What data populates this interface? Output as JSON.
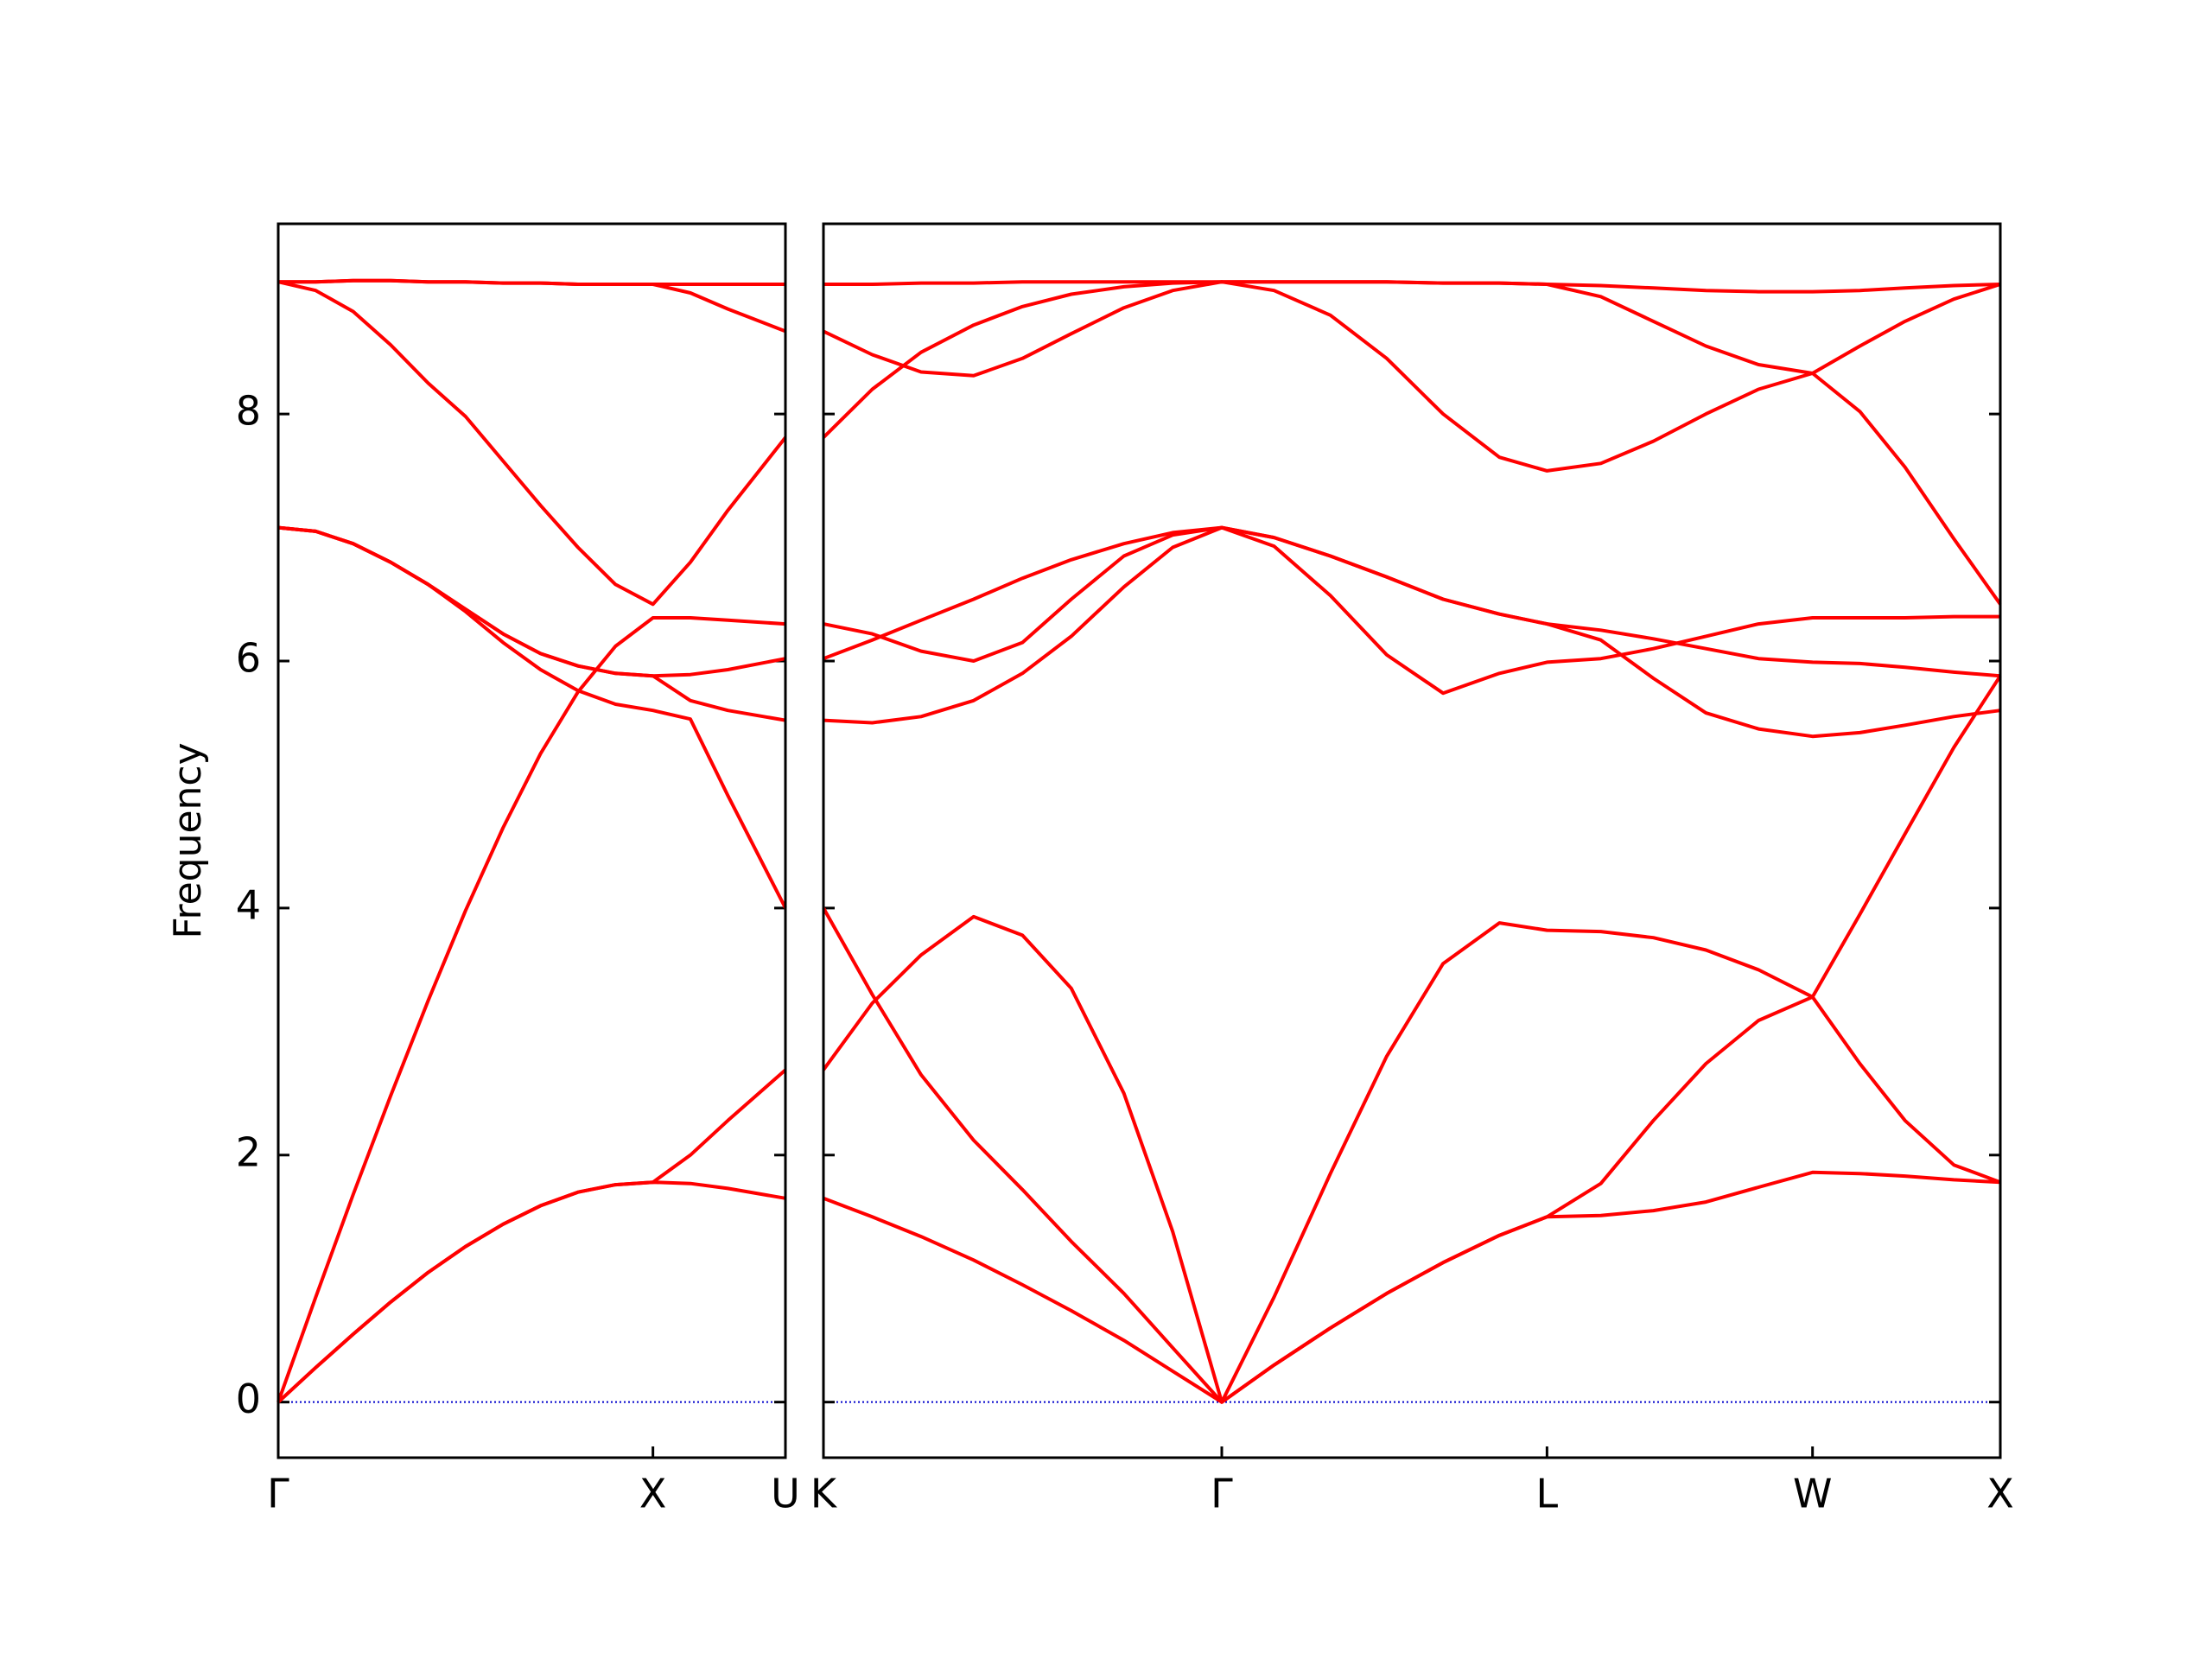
{
  "chart_data": [
    {
      "type": "line",
      "ylabel": "Frequency",
      "xlim": [
        0,
        1.3536
      ],
      "xticks": [
        {
          "value": 0,
          "label": "Γ"
        },
        {
          "value": 1,
          "label": "X"
        },
        {
          "value": 1.3536,
          "label": "U"
        }
      ],
      "ylim": [
        -0.45,
        9.54
      ],
      "yticks": [
        0,
        2,
        4,
        6,
        8
      ],
      "ytick_labels": true,
      "reference_line": {
        "value": 0,
        "color": "#0000cc"
      },
      "x": [
        0,
        0.1,
        0.2,
        0.3,
        0.4,
        0.5,
        0.6,
        0.7,
        0.8,
        0.9,
        1,
        1.1,
        1.2,
        1.3536
      ],
      "series": [
        {
          "color": "#ff0000",
          "values": [
            0,
            0.28,
            0.55,
            0.81,
            1.05,
            1.26,
            1.44,
            1.59,
            1.7,
            1.76,
            1.78,
            1.77,
            1.73,
            1.65
          ]
        },
        {
          "color": "#ff0000",
          "values": [
            0,
            0.28,
            0.55,
            0.81,
            1.05,
            1.26,
            1.44,
            1.59,
            1.7,
            1.76,
            1.78,
            2.0,
            2.28,
            2.69
          ]
        },
        {
          "color": "#ff0000",
          "values": [
            0,
            0.85,
            1.68,
            2.48,
            3.25,
            3.98,
            4.65,
            5.25,
            5.75,
            6.12,
            6.35,
            6.35,
            6.33,
            6.3
          ]
        },
        {
          "color": "#ff0000",
          "values": [
            7.08,
            7.05,
            6.95,
            6.8,
            6.62,
            6.4,
            6.15,
            5.93,
            5.76,
            5.65,
            5.6,
            5.53,
            4.91,
            4.0
          ]
        },
        {
          "color": "#ff0000",
          "values": [
            7.08,
            7.05,
            6.95,
            6.8,
            6.62,
            6.42,
            6.22,
            6.06,
            5.96,
            5.9,
            5.88,
            5.68,
            5.6,
            5.52
          ]
        },
        {
          "color": "#ff0000",
          "values": [
            7.08,
            7.05,
            6.95,
            6.8,
            6.62,
            6.42,
            6.22,
            6.06,
            5.96,
            5.9,
            5.88,
            5.89,
            5.93,
            6.02
          ]
        },
        {
          "color": "#ff0000",
          "values": [
            9.07,
            9.0,
            8.83,
            8.56,
            8.25,
            7.98,
            7.62,
            7.26,
            6.92,
            6.62,
            6.46,
            6.8,
            7.22,
            7.81
          ]
        },
        {
          "color": "#ff0000",
          "values": [
            9.07,
            9.07,
            9.08,
            9.08,
            9.07,
            9.07,
            9.06,
            9.06,
            9.05,
            9.05,
            9.05,
            8.98,
            8.85,
            8.67
          ]
        },
        {
          "color": "#ff0000",
          "values": [
            9.07,
            9.07,
            9.08,
            9.08,
            9.07,
            9.07,
            9.06,
            9.06,
            9.05,
            9.05,
            9.05,
            9.05,
            9.05,
            9.05
          ]
        }
      ]
    },
    {
      "type": "line",
      "xlim": [
        0,
        3.1338
      ],
      "xticks": [
        {
          "value": 0,
          "label": "K"
        },
        {
          "value": 1.0607,
          "label": "Γ"
        },
        {
          "value": 1.9267,
          "label": "L"
        },
        {
          "value": 2.6338,
          "label": "W"
        },
        {
          "value": 3.1338,
          "label": "X"
        }
      ],
      "ylim": [
        -0.45,
        9.54
      ],
      "yticks": [
        0,
        2,
        4,
        6,
        8
      ],
      "ytick_labels": false,
      "reference_line": {
        "value": 0,
        "color": "#0000cc"
      },
      "x": [
        0,
        0.13,
        0.26,
        0.4,
        0.53,
        0.66,
        0.8,
        0.93,
        1.0607,
        1.2,
        1.35,
        1.5,
        1.65,
        1.8,
        1.9267,
        2.07,
        2.21,
        2.35,
        2.49,
        2.6338,
        2.76,
        2.88,
        3.01,
        3.1338
      ],
      "series": [
        {
          "color": "#ff0000",
          "values": [
            1.65,
            1.5,
            1.34,
            1.15,
            0.95,
            0.74,
            0.5,
            0.25,
            0,
            0.3,
            0.6,
            0.88,
            1.13,
            1.35,
            1.5,
            1.51,
            1.55,
            1.62,
            1.74,
            1.86,
            1.85,
            1.83,
            1.8,
            1.78
          ]
        },
        {
          "color": "#ff0000",
          "values": [
            2.69,
            3.23,
            3.62,
            3.93,
            3.78,
            3.35,
            2.5,
            1.38,
            0,
            0.3,
            0.6,
            0.88,
            1.13,
            1.35,
            1.5,
            1.77,
            2.28,
            2.74,
            3.09,
            3.28,
            2.74,
            2.28,
            1.92,
            1.78
          ]
        },
        {
          "color": "#ff0000",
          "values": [
            4.0,
            3.3,
            2.65,
            2.12,
            1.72,
            1.3,
            0.88,
            0.44,
            0,
            0.85,
            1.85,
            2.8,
            3.55,
            3.88,
            3.82,
            3.81,
            3.76,
            3.66,
            3.5,
            3.28,
            3.95,
            4.6,
            5.3,
            5.88
          ]
        },
        {
          "color": "#ff0000",
          "values": [
            5.52,
            5.5,
            5.55,
            5.68,
            5.9,
            6.2,
            6.6,
            6.92,
            7.08,
            6.93,
            6.53,
            6.05,
            5.74,
            5.9,
            5.99,
            6.02,
            6.1,
            6.2,
            6.3,
            6.35,
            6.35,
            6.35,
            6.36,
            6.36
          ]
        },
        {
          "color": "#ff0000",
          "values": [
            6.3,
            6.22,
            6.08,
            6.0,
            6.15,
            6.5,
            6.85,
            7.02,
            7.08,
            7.0,
            6.85,
            6.68,
            6.5,
            6.38,
            6.3,
            6.25,
            6.18,
            6.1,
            6.02,
            5.99,
            5.98,
            5.95,
            5.91,
            5.88
          ]
        },
        {
          "color": "#ff0000",
          "values": [
            6.02,
            6.17,
            6.33,
            6.5,
            6.67,
            6.82,
            6.95,
            7.04,
            7.08,
            7.0,
            6.85,
            6.68,
            6.5,
            6.38,
            6.3,
            6.17,
            5.86,
            5.58,
            5.45,
            5.39,
            5.42,
            5.48,
            5.55,
            5.6
          ]
        },
        {
          "color": "#ff0000",
          "values": [
            7.81,
            8.2,
            8.5,
            8.72,
            8.87,
            8.97,
            9.03,
            9.06,
            9.07,
            9.0,
            8.8,
            8.45,
            8.0,
            7.65,
            7.54,
            7.6,
            7.78,
            8.0,
            8.2,
            8.33,
            8.02,
            7.57,
            6.99,
            6.46
          ]
        },
        {
          "color": "#ff0000",
          "values": [
            8.67,
            8.48,
            8.34,
            8.31,
            8.45,
            8.65,
            8.86,
            9.0,
            9.07,
            9.07,
            9.07,
            9.07,
            9.06,
            9.06,
            9.05,
            8.95,
            8.75,
            8.55,
            8.4,
            8.33,
            8.55,
            8.75,
            8.93,
            9.05
          ]
        },
        {
          "color": "#ff0000",
          "values": [
            9.05,
            9.05,
            9.06,
            9.06,
            9.07,
            9.07,
            9.07,
            9.07,
            9.07,
            9.07,
            9.07,
            9.07,
            9.06,
            9.06,
            9.05,
            9.04,
            9.02,
            9.0,
            8.99,
            8.99,
            9.0,
            9.02,
            9.04,
            9.05
          ]
        }
      ]
    }
  ]
}
